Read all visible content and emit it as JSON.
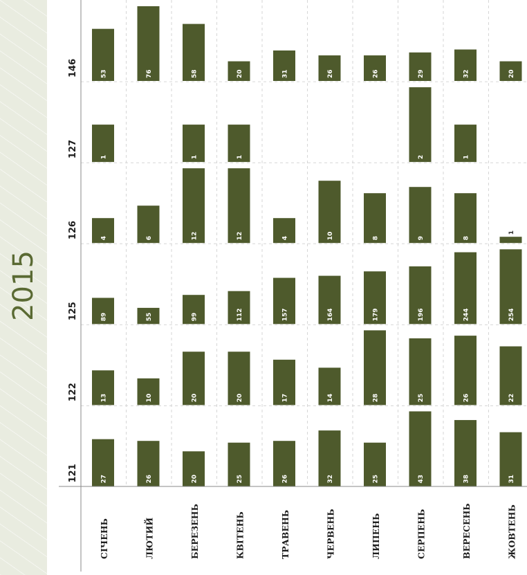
{
  "year": "2015",
  "colors": {
    "bar": "#4e5a2c",
    "year_band": "#e9ece0",
    "year_text": "#5a6a33"
  },
  "chart_data": {
    "type": "bar",
    "title": "",
    "orientation": "rotated small-multiple bar chart (vertical bars per month, one panel per code)",
    "categories": [
      "СІЧЕНЬ",
      "ЛЮТИЙ",
      "БЕРЕЗЕНЬ",
      "КВІТЕНЬ",
      "ТРАВЕНЬ",
      "ЧЕРВЕНЬ",
      "ЛИПЕНЬ",
      "СЕРПЕНЬ",
      "ВЕРЕСЕНЬ",
      "ЖОВТЕНЬ"
    ],
    "series": [
      {
        "name": "146",
        "values": [
          53,
          76,
          58,
          20,
          31,
          26,
          26,
          29,
          32,
          20
        ]
      },
      {
        "name": "127",
        "values": [
          1,
          null,
          1,
          1,
          null,
          null,
          null,
          2,
          1,
          null
        ]
      },
      {
        "name": "126",
        "values": [
          4,
          6,
          12,
          12,
          4,
          10,
          8,
          9,
          8,
          1
        ]
      },
      {
        "name": "125",
        "values": [
          89,
          55,
          99,
          112,
          157,
          164,
          179,
          196,
          244,
          254
        ]
      },
      {
        "name": "122",
        "values": [
          13,
          10,
          20,
          20,
          17,
          14,
          28,
          25,
          26,
          22
        ]
      },
      {
        "name": "121",
        "values": [
          27,
          26,
          20,
          25,
          26,
          32,
          25,
          43,
          38,
          31
        ]
      }
    ],
    "grid": true,
    "legend": "none"
  }
}
